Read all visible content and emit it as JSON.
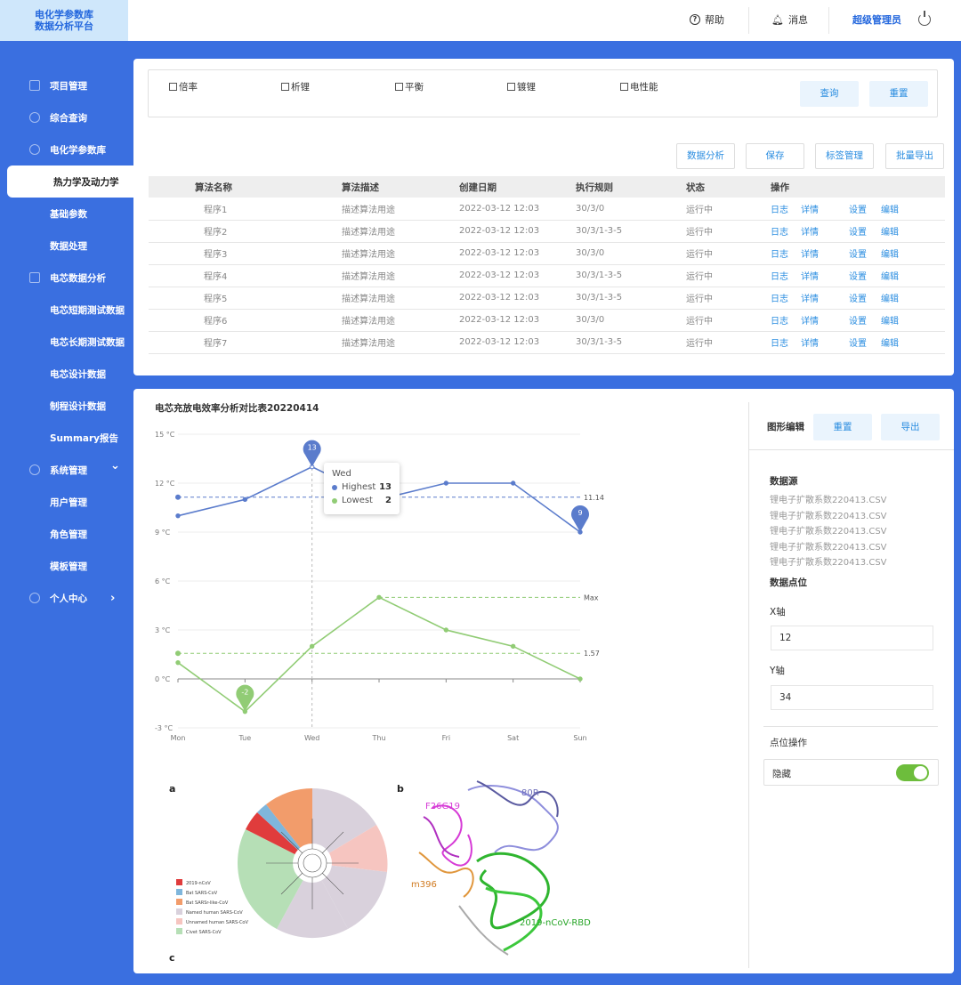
{
  "brand": {
    "line1": "电化学参数库",
    "line2": "数据分析平台"
  },
  "header": {
    "help": "帮助",
    "messages": "消息",
    "admin": "超级管理员"
  },
  "sidebar": {
    "items": [
      {
        "label": "项目管理",
        "icon": "calendar-icon"
      },
      {
        "label": "综合查询",
        "icon": "database-icon"
      },
      {
        "label": "电化学参数库",
        "icon": "gear-icon"
      },
      {
        "label": "热力学及动力学",
        "active": true
      },
      {
        "label": "基础参数"
      },
      {
        "label": "数据处理"
      },
      {
        "label": "电芯数据分析",
        "icon": "monitor-icon"
      },
      {
        "label": "电芯短期测试数据"
      },
      {
        "label": "电芯长期测试数据"
      },
      {
        "label": "电芯设计数据"
      },
      {
        "label": "制程设计数据"
      },
      {
        "label": "Summary报告"
      },
      {
        "label": "系统管理",
        "icon": "gear-icon"
      },
      {
        "label": "用户管理"
      },
      {
        "label": "角色管理"
      },
      {
        "label": "模板管理"
      },
      {
        "label": "个人中心",
        "icon": "user-icon"
      }
    ]
  },
  "filters": {
    "options": [
      "倍率",
      "析锂",
      "平衡",
      "镀锂",
      "电性能"
    ],
    "query": "查询",
    "reset": "重置"
  },
  "toolbar": {
    "analysis": "数据分析",
    "save": "保存",
    "tags": "标签管理",
    "export": "批量导出"
  },
  "table": {
    "headers": [
      "算法名称",
      "算法描述",
      "创建日期",
      "执行规则",
      "状态",
      "操作"
    ],
    "actions": [
      "日志",
      "详情",
      "设置",
      "编辑"
    ],
    "rows": [
      {
        "name": "程序1",
        "desc": "描述算法用途",
        "date": "2022-03-12 12:03",
        "rule": "30/3/0",
        "status": "运行中"
      },
      {
        "name": "程序2",
        "desc": "描述算法用途",
        "date": "2022-03-12 12:03",
        "rule": "30/3/1-3-5",
        "status": "运行中"
      },
      {
        "name": "程序3",
        "desc": "描述算法用途",
        "date": "2022-03-12 12:03",
        "rule": "30/3/0",
        "status": "运行中"
      },
      {
        "name": "程序4",
        "desc": "描述算法用途",
        "date": "2022-03-12 12:03",
        "rule": "30/3/1-3-5",
        "status": "运行中"
      },
      {
        "name": "程序5",
        "desc": "描述算法用途",
        "date": "2022-03-12 12:03",
        "rule": "30/3/1-3-5",
        "status": "运行中"
      },
      {
        "name": "程序6",
        "desc": "描述算法用途",
        "date": "2022-03-12 12:03",
        "rule": "30/3/0",
        "status": "运行中"
      },
      {
        "name": "程序7",
        "desc": "描述算法用途",
        "date": "2022-03-12 12:03",
        "rule": "30/3/1-3-5",
        "status": "运行中"
      }
    ]
  },
  "chart_title": "电芯充放电效率分析对比表20220414",
  "chart_data": {
    "type": "line",
    "title": "电芯充放电效率分析对比表20220414",
    "categories": [
      "Mon",
      "Tue",
      "Wed",
      "Thu",
      "Fri",
      "Sat",
      "Sun"
    ],
    "y_ticks": [
      "15 °C",
      "12 °C",
      "9 °C",
      "6 °C",
      "3 °C",
      "0 °C",
      "-3 °C"
    ],
    "ylim": [
      -3,
      15
    ],
    "series": [
      {
        "name": "Highest",
        "values": [
          10,
          11,
          13,
          11,
          12,
          12,
          9
        ],
        "color": "#5b7ccc",
        "avg": 11.14,
        "avg_label": "11.14",
        "max_pin": "13",
        "min_pin": "9"
      },
      {
        "name": "Lowest",
        "values": [
          1,
          -2,
          2,
          5,
          3,
          2,
          0
        ],
        "color": "#91cc75",
        "avg": 1.57,
        "avg_label": "1.57",
        "max_line_label": "Max",
        "min_pin": "-2"
      }
    ],
    "tooltip": {
      "title": "Wed",
      "rows": [
        {
          "name": "Highest",
          "value": "13"
        },
        {
          "name": "Lowest",
          "value": "2"
        }
      ]
    }
  },
  "figures": {
    "a_label": "a",
    "b_label": "b",
    "c_label": "c",
    "legend": [
      "2019-nCoV",
      "Bat SARS-CoV",
      "Bat SARSr-like-CoV",
      "Named human SARS-CoV",
      "Unnamed human SARS-CoV",
      "Civet SARS-CoV"
    ],
    "legend_colors": [
      "#e03c3c",
      "#7fb6dc",
      "#f29c6b",
      "#d9d1dc",
      "#f6c5c0",
      "#b6dfb6"
    ],
    "protein_labels": {
      "f26g19": "F26G19",
      "r80": "80R",
      "m396": "m396",
      "rbd": "2019-nCoV-RBD"
    }
  },
  "editor": {
    "title": "图形编辑",
    "reset": "重置",
    "export": "导出",
    "source_label": "数据源",
    "files": [
      "锂电子扩散系数220413.CSV",
      "锂电子扩散系数220413.CSV",
      "锂电子扩散系数220413.CSV",
      "锂电子扩散系数220413.CSV",
      "锂电子扩散系数220413.CSV"
    ],
    "point_label": "数据点位",
    "x_label": "X轴",
    "x_value": "12",
    "y_label": "Y轴",
    "y_value": "34",
    "op_label": "点位操作",
    "hide_label": "隐藏",
    "hide_on": true
  }
}
